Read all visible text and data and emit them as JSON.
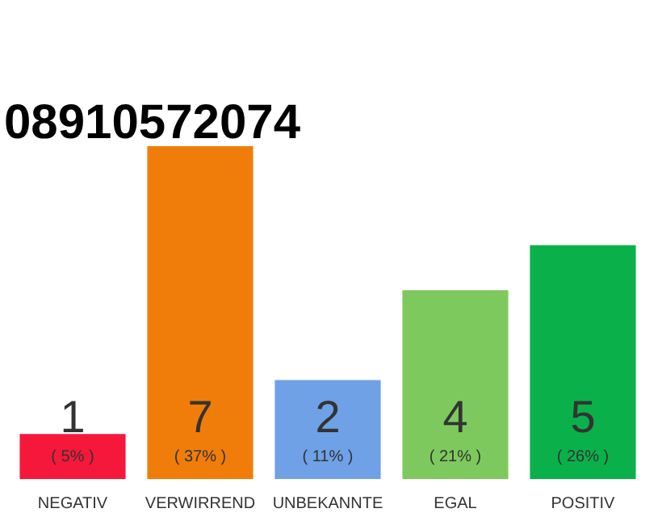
{
  "chart_data": {
    "type": "bar",
    "title": "08910572074",
    "categories": [
      "NEGATIV",
      "VERWIRREND",
      "UNBEKANNTE",
      "EGAL",
      "POSITIV"
    ],
    "values": [
      5,
      37,
      11,
      21,
      26
    ],
    "colors": [
      "#f5183b",
      "#f07d0a",
      "#6ea1e6",
      "#7dc95e",
      "#0ab14a"
    ],
    "value_labels": [
      "( 5% )",
      "( 37% )",
      "( 11% )",
      "( 21% )",
      "( 26% )"
    ],
    "annotations": [
      "1",
      "7",
      "2",
      "4",
      "5"
    ]
  }
}
